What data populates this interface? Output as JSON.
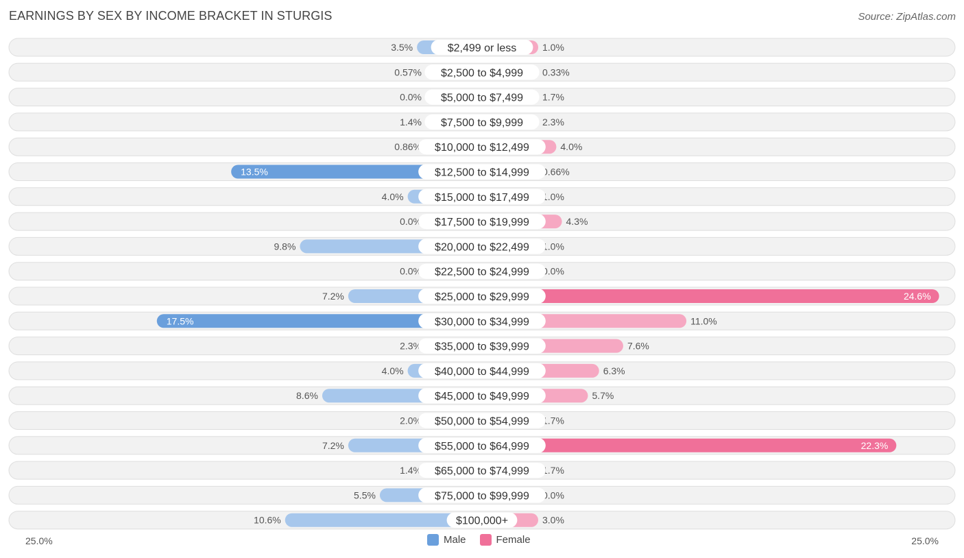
{
  "chart_data": {
    "type": "bar",
    "title": "EARNINGS BY SEX BY INCOME BRACKET IN STURGIS",
    "source": "Source: ZipAtlas.com",
    "categories": [
      "$2,499 or less",
      "$2,500 to $4,999",
      "$5,000 to $7,499",
      "$7,500 to $9,999",
      "$10,000 to $12,499",
      "$12,500 to $14,999",
      "$15,000 to $17,499",
      "$17,500 to $19,999",
      "$20,000 to $22,499",
      "$22,500 to $24,999",
      "$25,000 to $29,999",
      "$30,000 to $34,999",
      "$35,000 to $39,999",
      "$40,000 to $44,999",
      "$45,000 to $49,999",
      "$50,000 to $54,999",
      "$55,000 to $64,999",
      "$65,000 to $74,999",
      "$75,000 to $99,999",
      "$100,000+"
    ],
    "series": [
      {
        "name": "Male",
        "color": "#6a9fdc",
        "color_light": "#a7c7ec",
        "values": [
          3.5,
          0.57,
          0.0,
          1.4,
          0.86,
          13.5,
          4.0,
          0.0,
          9.8,
          0.0,
          7.2,
          17.5,
          2.3,
          4.0,
          8.6,
          2.0,
          7.2,
          1.4,
          5.5,
          10.6
        ],
        "labels": [
          "3.5%",
          "0.57%",
          "0.0%",
          "1.4%",
          "0.86%",
          "13.5%",
          "4.0%",
          "0.0%",
          "9.8%",
          "0.0%",
          "7.2%",
          "17.5%",
          "2.3%",
          "4.0%",
          "8.6%",
          "2.0%",
          "7.2%",
          "1.4%",
          "5.5%",
          "10.6%"
        ]
      },
      {
        "name": "Female",
        "color": "#f07099",
        "color_light": "#f6a8c2",
        "values": [
          1.0,
          0.33,
          1.7,
          2.3,
          4.0,
          0.66,
          1.0,
          4.3,
          1.0,
          0.0,
          24.6,
          11.0,
          7.6,
          6.3,
          5.7,
          1.7,
          22.3,
          1.7,
          0.0,
          3.0
        ],
        "labels": [
          "1.0%",
          "0.33%",
          "1.7%",
          "2.3%",
          "4.0%",
          "0.66%",
          "1.0%",
          "4.3%",
          "1.0%",
          "0.0%",
          "24.6%",
          "11.0%",
          "7.6%",
          "6.3%",
          "5.7%",
          "1.7%",
          "22.3%",
          "1.7%",
          "0.0%",
          "3.0%"
        ]
      }
    ],
    "xlim": [
      -25,
      25
    ],
    "axis_left_label": "25.0%",
    "axis_right_label": "25.0%",
    "legend_position": "bottom-center"
  }
}
